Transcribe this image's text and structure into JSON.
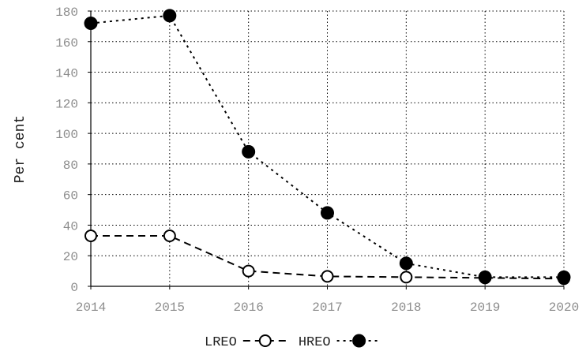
{
  "chart_data": {
    "type": "line",
    "title": "",
    "xlabel": "",
    "ylabel": "Per cent",
    "x": [
      2014,
      2015,
      2016,
      2017,
      2018,
      2019,
      2020
    ],
    "x_tick_labels": [
      "2014",
      "2015",
      "2016",
      "2017",
      "2018",
      "2019",
      "2020"
    ],
    "y_tick_labels": [
      "0",
      "20",
      "40",
      "60",
      "80",
      "100",
      "120",
      "140",
      "160",
      "180"
    ],
    "ylim": [
      0,
      180
    ],
    "grid": true,
    "legend_position": "bottom",
    "series": [
      {
        "name": "LREO",
        "values": [
          33,
          33,
          10,
          6.5,
          6,
          5.5,
          5
        ],
        "marker": "open-circle",
        "line_style": "dashed",
        "color": "#000000"
      },
      {
        "name": "HREO",
        "values": [
          172,
          177,
          88,
          48,
          15,
          6,
          6
        ],
        "marker": "filled-circle",
        "line_style": "dotted",
        "color": "#000000"
      }
    ]
  }
}
